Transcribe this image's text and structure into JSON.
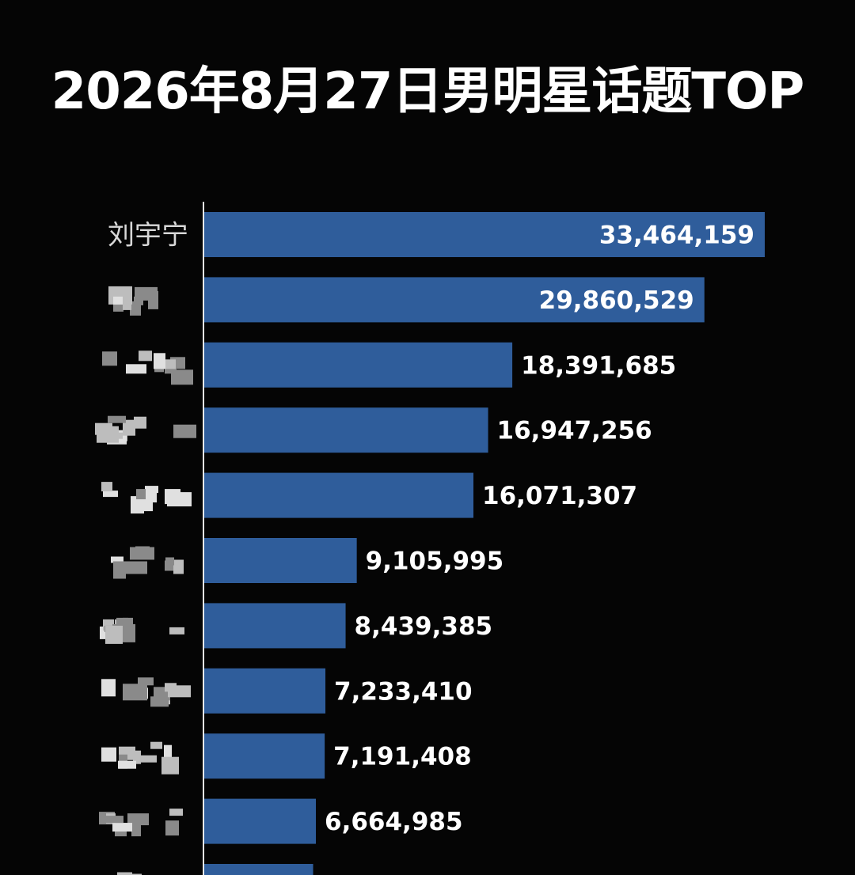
{
  "title": "2026年8月27日男明星话题TOP",
  "chart_data": {
    "type": "bar",
    "orientation": "horizontal",
    "title": "2026年8月27日男明星话题TOP",
    "categories": [
      "刘宇宁",
      "",
      "",
      "",
      "",
      "",
      "",
      "",
      "",
      "",
      ""
    ],
    "values": [
      33464159,
      29860529,
      18391685,
      16947256,
      16071307,
      9105995,
      8439385,
      7233410,
      7191408,
      6664985,
      6500000
    ],
    "value_labels": [
      "33,464,159",
      "29,860,529",
      "18,391,685",
      "16,947,256",
      "16,071,307",
      "9,105,995",
      "8,439,385",
      "7,233,410",
      "7,191,408",
      "6,664,985",
      ""
    ],
    "xlim": [
      0,
      33464159
    ],
    "grid": false,
    "legend": "none",
    "bar_color": "#2f5d9b",
    "categories_pixelated": true
  }
}
